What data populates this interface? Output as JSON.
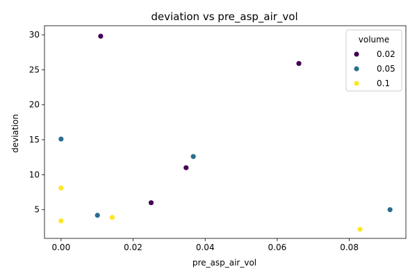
{
  "chart_data": {
    "type": "scatter",
    "title": "deviation vs pre_asp_air_vol",
    "xlabel": "pre_asp_air_vol",
    "ylabel": "deviation",
    "xlim": [
      -0.0046,
      0.0957
    ],
    "ylim": [
      0.9,
      31.3
    ],
    "xticks": [
      0.0,
      0.02,
      0.04,
      0.06,
      0.08
    ],
    "yticks": [
      5,
      10,
      15,
      20,
      25,
      30
    ],
    "grid": false,
    "legend": {
      "title": "volume",
      "placement": "top-right"
    },
    "series": [
      {
        "name": "0.02",
        "color": "#440154",
        "points": [
          {
            "x": 0.011,
            "y": 29.8
          },
          {
            "x": 0.066,
            "y": 25.9
          },
          {
            "x": 0.0347,
            "y": 11.0
          },
          {
            "x": 0.025,
            "y": 6.0
          }
        ]
      },
      {
        "name": "0.05",
        "color": "#2a6f8e",
        "points": [
          {
            "x": 0.0,
            "y": 15.1
          },
          {
            "x": 0.0367,
            "y": 12.6
          },
          {
            "x": 0.0101,
            "y": 4.2
          },
          {
            "x": 0.0913,
            "y": 5.0
          }
        ]
      },
      {
        "name": "0.1",
        "color": "#fde725",
        "points": [
          {
            "x": 0.0,
            "y": 8.1
          },
          {
            "x": 0.0,
            "y": 3.4
          },
          {
            "x": 0.0142,
            "y": 3.9
          },
          {
            "x": 0.083,
            "y": 2.2
          }
        ]
      }
    ]
  }
}
